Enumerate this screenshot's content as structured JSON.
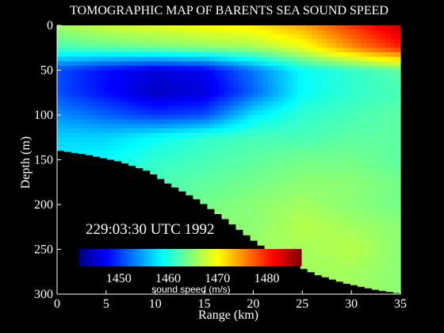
{
  "chart_data": {
    "type": "heatmap",
    "title": "TOMOGRAPHIC MAP OF BARENTS SEA SOUND SPEED",
    "xlabel": "Range (km)",
    "ylabel": "Depth (m)",
    "xlim": [
      0,
      35
    ],
    "ylim": [
      0,
      300
    ],
    "y_inverted": true,
    "x_ticks": [
      "0",
      "5",
      "10",
      "15",
      "20",
      "25",
      "30",
      "35"
    ],
    "y_ticks": [
      "0",
      "50",
      "100",
      "150",
      "200",
      "250",
      "300"
    ],
    "timestamp": "229:03:30 UTC 1992",
    "colorbar": {
      "label": "sound speed (m/s)",
      "ticks": [
        "1450",
        "1460",
        "1470",
        "1480"
      ],
      "range": [
        1442,
        1487
      ],
      "colormap": "jet"
    },
    "seafloor_depth": {
      "range_km": [
        0,
        3,
        6,
        9,
        11,
        14,
        17,
        20,
        23,
        26,
        29,
        32,
        35
      ],
      "depth_m": [
        140,
        145,
        152,
        163,
        177,
        195,
        218,
        243,
        263,
        278,
        288,
        295,
        300
      ]
    },
    "sound_speed": {
      "range_km": [
        0,
        5,
        10,
        15,
        20,
        25,
        30,
        35
      ],
      "depth_m": [
        0,
        25,
        50,
        75,
        100,
        125,
        150,
        175,
        200,
        225,
        250,
        275,
        300
      ],
      "values": [
        [
          1466,
          1468,
          1469,
          1470,
          1471,
          1474,
          1479,
          1484
        ],
        [
          1462,
          1463,
          1464,
          1465,
          1466,
          1469,
          1475,
          1480
        ],
        [
          1451,
          1448,
          1446,
          1447,
          1453,
          1459,
          1461,
          1463
        ],
        [
          1451,
          1448,
          1445,
          1446,
          1452,
          1459,
          1461,
          1462
        ],
        [
          1454,
          1452,
          1450,
          1451,
          1458,
          1461,
          1462,
          1463
        ],
        [
          1457,
          1457,
          1459,
          1461,
          1462,
          1462,
          1463,
          1463
        ],
        [
          1458,
          1459,
          1461,
          1462,
          1463,
          1464,
          1464,
          1463
        ],
        [
          1459,
          1460,
          1462,
          1463,
          1464,
          1465,
          1465,
          1464
        ],
        [
          1459,
          1461,
          1463,
          1464,
          1465,
          1466,
          1465,
          1464
        ],
        [
          1460,
          1461,
          1463,
          1465,
          1465,
          1467,
          1466,
          1465
        ],
        [
          1460,
          1461,
          1463,
          1465,
          1466,
          1466,
          1467,
          1465
        ],
        [
          1460,
          1461,
          1463,
          1465,
          1466,
          1466,
          1466,
          1465
        ],
        [
          1460,
          1461,
          1463,
          1465,
          1466,
          1466,
          1466,
          1465
        ]
      ]
    }
  }
}
